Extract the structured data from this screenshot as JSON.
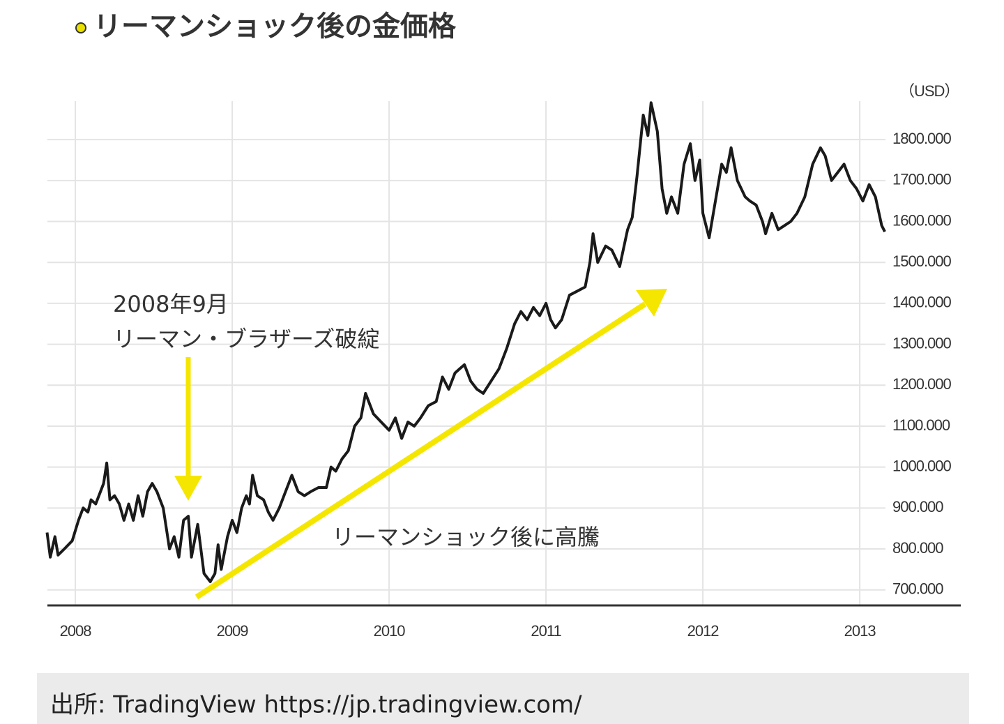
{
  "chart_data": {
    "type": "line",
    "title": "リーマンショック後の金価格",
    "unit_label": "（USD）",
    "annotations": [
      "2008年9月",
      "リーマン・ブラザーズ破綻",
      "リーマンショック後に高騰"
    ],
    "x": [
      2007.82,
      2007.84,
      2007.87,
      2007.89,
      2007.93,
      2007.98,
      2008.02,
      2008.05,
      2008.08,
      2008.1,
      2008.13,
      2008.16,
      2008.18,
      2008.2,
      2008.22,
      2008.25,
      2008.28,
      2008.31,
      2008.34,
      2008.37,
      2008.4,
      2008.43,
      2008.46,
      2008.49,
      2008.52,
      2008.56,
      2008.6,
      2008.63,
      2008.66,
      2008.69,
      2008.72,
      2008.74,
      2008.78,
      2008.82,
      2008.86,
      2008.89,
      2008.91,
      2008.93,
      2008.97,
      2009.0,
      2009.03,
      2009.06,
      2009.09,
      2009.11,
      2009.13,
      2009.16,
      2009.2,
      2009.23,
      2009.26,
      2009.3,
      2009.33,
      2009.38,
      2009.42,
      2009.46,
      2009.5,
      2009.55,
      2009.6,
      2009.63,
      2009.66,
      2009.7,
      2009.74,
      2009.78,
      2009.82,
      2009.85,
      2009.9,
      2009.95,
      2010.0,
      2010.04,
      2010.08,
      2010.12,
      2010.16,
      2010.2,
      2010.25,
      2010.3,
      2010.34,
      2010.38,
      2010.42,
      2010.45,
      2010.48,
      2010.52,
      2010.56,
      2010.6,
      2010.65,
      2010.7,
      2010.75,
      2010.8,
      2010.84,
      2010.88,
      2010.92,
      2010.96,
      2011.0,
      2011.03,
      2011.06,
      2011.1,
      2011.15,
      2011.2,
      2011.25,
      2011.28,
      2011.3,
      2011.33,
      2011.38,
      2011.42,
      2011.47,
      2011.52,
      2011.55,
      2011.58,
      2011.62,
      2011.65,
      2011.67,
      2011.71,
      2011.74,
      2011.77,
      2011.8,
      2011.84,
      2011.88,
      2011.92,
      2011.95,
      2011.98,
      2012.0,
      2012.04,
      2012.08,
      2012.12,
      2012.15,
      2012.18,
      2012.22,
      2012.27,
      2012.3,
      2012.34,
      2012.38,
      2012.4,
      2012.44,
      2012.48,
      2012.52,
      2012.56,
      2012.6,
      2012.65,
      2012.7,
      2012.75,
      2012.78,
      2012.82,
      2012.86,
      2012.9,
      2012.94,
      2012.98,
      2013.02,
      2013.06,
      2013.1,
      2013.14,
      2013.16
    ],
    "series": [
      {
        "color": "#1a1a1a",
        "values": [
          840,
          780,
          830,
          785,
          800,
          820,
          870,
          900,
          890,
          920,
          910,
          940,
          960,
          1010,
          920,
          930,
          910,
          870,
          910,
          870,
          930,
          880,
          940,
          960,
          940,
          900,
          800,
          830,
          780,
          870,
          880,
          780,
          860,
          740,
          720,
          740,
          810,
          750,
          830,
          870,
          840,
          900,
          930,
          910,
          980,
          930,
          920,
          890,
          870,
          900,
          930,
          980,
          940,
          930,
          940,
          950,
          950,
          1000,
          990,
          1020,
          1040,
          1100,
          1120,
          1180,
          1130,
          1110,
          1090,
          1120,
          1070,
          1110,
          1100,
          1120,
          1150,
          1160,
          1220,
          1190,
          1230,
          1240,
          1250,
          1210,
          1190,
          1180,
          1210,
          1240,
          1290,
          1350,
          1380,
          1360,
          1390,
          1370,
          1400,
          1360,
          1340,
          1360,
          1420,
          1430,
          1440,
          1500,
          1570,
          1500,
          1540,
          1530,
          1490,
          1580,
          1610,
          1710,
          1860,
          1810,
          1890,
          1820,
          1680,
          1620,
          1660,
          1620,
          1740,
          1790,
          1700,
          1750,
          1620,
          1560,
          1650,
          1740,
          1720,
          1780,
          1700,
          1660,
          1650,
          1640,
          1600,
          1570,
          1620,
          1580,
          1590,
          1600,
          1620,
          1660,
          1740,
          1780,
          1760,
          1700,
          1720,
          1740,
          1700,
          1680,
          1650,
          1690,
          1660,
          1590,
          1575
        ]
      }
    ],
    "xlim": [
      2007.822,
      2013.644
    ],
    "xticks": [
      2008,
      2009,
      2010,
      2011,
      2012,
      2013
    ],
    "ylim": [
      662,
      1894
    ],
    "yticks": [
      {
        "value": 700,
        "label": "700.000"
      },
      {
        "value": 800,
        "label": "800.000"
      },
      {
        "value": 900,
        "label": "900.000"
      },
      {
        "value": 1000,
        "label": "1000.000"
      },
      {
        "value": 1100,
        "label": "1100.000"
      },
      {
        "value": 1200,
        "label": "1200.000"
      },
      {
        "value": 1300,
        "label": "1300.000"
      },
      {
        "value": 1400,
        "label": "1400.000"
      },
      {
        "value": 1500,
        "label": "1500.000"
      },
      {
        "value": 1600,
        "label": "1600.000"
      },
      {
        "value": 1700,
        "label": "1700.000"
      },
      {
        "value": 1800,
        "label": "1800.000"
      }
    ],
    "grid": true
  },
  "source": "出所: TradingView https://jp.tradingview.com/"
}
